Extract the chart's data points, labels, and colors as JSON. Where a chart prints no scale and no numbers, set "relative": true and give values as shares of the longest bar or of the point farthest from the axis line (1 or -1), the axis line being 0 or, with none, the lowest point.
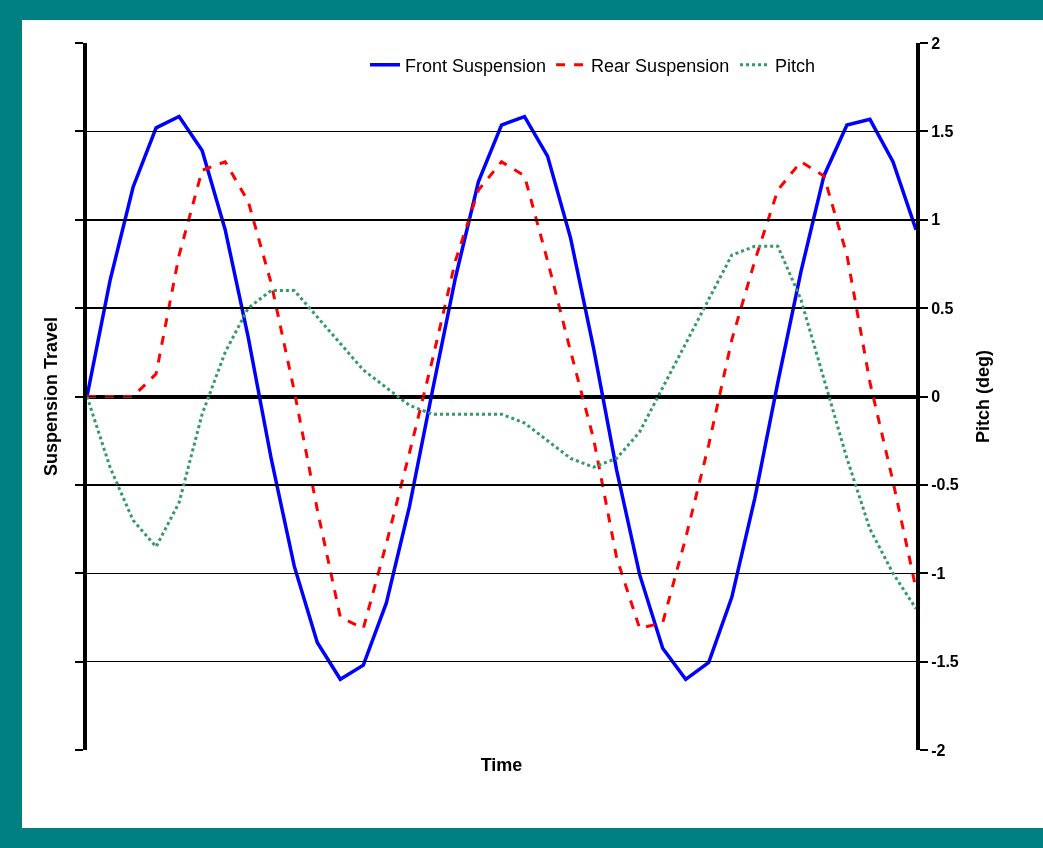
{
  "chart_data": [
    {
      "type": "line",
      "xlabel": "Time",
      "ylabel": "Suspension Travel",
      "relative": true,
      "legend": "top",
      "categories": [
        null,
        null,
        null,
        null,
        null,
        null,
        null,
        null,
        null,
        null,
        null,
        null,
        null,
        null,
        null,
        null,
        null,
        null,
        null,
        null,
        null,
        null,
        null,
        null,
        null,
        null,
        null,
        null,
        null,
        null,
        null,
        null,
        null,
        null,
        null,
        null,
        null
      ],
      "series": [
        {
          "name": "Front Suspension",
          "color": "#0000ff",
          "line_style": "solid",
          "values": [
            0,
            0.41,
            0.74,
            0.95,
            0.99,
            0.87,
            0.59,
            0.21,
            -0.22,
            -0.6,
            -0.87,
            -1.0,
            -0.95,
            -0.73,
            -0.39,
            0.02,
            0.42,
            0.76,
            0.96,
            0.99,
            0.85,
            0.56,
            0.17,
            -0.26,
            -0.63,
            -0.89,
            -1.0,
            -0.94,
            -0.71,
            -0.36,
            0.05,
            0.44,
            0.78,
            0.96,
            0.98,
            0.83,
            0.59
          ]
        },
        {
          "name": "Rear Suspension",
          "color": "#ff0000",
          "line_style": "dashed",
          "values": [
            0,
            0,
            0,
            0.08,
            0.5,
            0.8,
            0.83,
            0.69,
            0.4,
            0.02,
            -0.4,
            -0.78,
            -0.82,
            -0.52,
            -0.2,
            0.13,
            0.48,
            0.73,
            0.83,
            0.78,
            0.48,
            0.16,
            -0.15,
            -0.57,
            -0.82,
            -0.8,
            -0.5,
            -0.17,
            0.2,
            0.48,
            0.73,
            0.83,
            0.78,
            0.5,
            0.05,
            -0.3,
            -0.68
          ]
        }
      ]
    },
    {
      "type": "line",
      "ylabel": "Pitch (deg)",
      "legend": "top",
      "grid": "y",
      "ylim": [
        -2,
        2
      ],
      "yticks": [
        -2,
        -1.5,
        -1,
        -0.5,
        0,
        0.5,
        1,
        1.5,
        2
      ],
      "categories": [
        null,
        null,
        null,
        null,
        null,
        null,
        null,
        null,
        null,
        null,
        null,
        null,
        null,
        null,
        null,
        null,
        null,
        null,
        null,
        null,
        null,
        null,
        null,
        null,
        null,
        null,
        null,
        null,
        null,
        null,
        null,
        null,
        null,
        null,
        null,
        null,
        null
      ],
      "series": [
        {
          "name": "Pitch",
          "color": "#339966",
          "line_style": "dotted",
          "values": [
            0,
            -0.4,
            -0.7,
            -0.85,
            -0.6,
            -0.1,
            0.25,
            0.5,
            0.6,
            0.6,
            0.45,
            0.3,
            0.15,
            0.05,
            -0.05,
            -0.1,
            -0.1,
            -0.1,
            -0.1,
            -0.15,
            -0.25,
            -0.35,
            -0.4,
            -0.35,
            -0.2,
            0.05,
            0.3,
            0.55,
            0.8,
            0.85,
            0.85,
            0.55,
            0.1,
            -0.35,
            -0.75,
            -1.0,
            -1.2
          ]
        }
      ]
    }
  ]
}
